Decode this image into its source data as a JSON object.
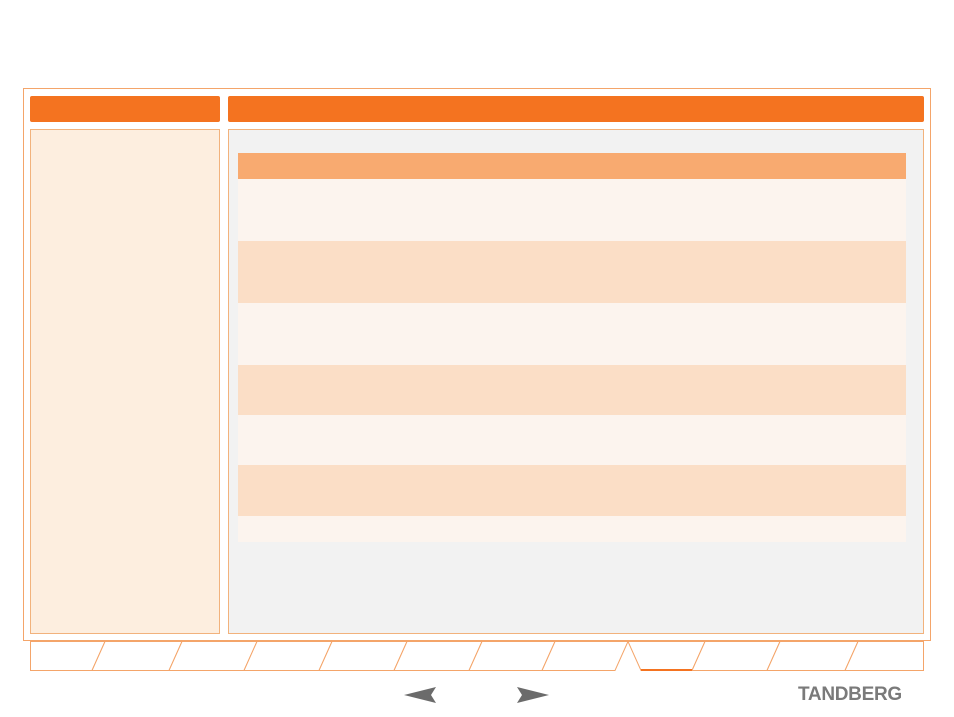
{
  "sidebar": {
    "title": ""
  },
  "main": {
    "title": ""
  },
  "table": {
    "rows": [
      {
        "shade": "light"
      },
      {
        "shade": "dark"
      },
      {
        "shade": "light"
      },
      {
        "shade": "dark"
      },
      {
        "shade": "light"
      },
      {
        "shade": "dark"
      },
      {
        "shade": "light"
      }
    ]
  },
  "tabs": {
    "count": 12,
    "active_index": 8
  },
  "navigation": {
    "prev_icon": "arrow-left-icon",
    "next_icon": "arrow-right-icon"
  },
  "brand": {
    "logo_text": "TANDBERG"
  },
  "colors": {
    "accent": "#f47320",
    "table_header": "#f8aa70",
    "row_light": "#fcf4ee",
    "row_dark": "#fbdec6",
    "sidebar_bg": "#fdeedf",
    "main_bg": "#f2f2f2",
    "logo": "#7a7a7a"
  }
}
